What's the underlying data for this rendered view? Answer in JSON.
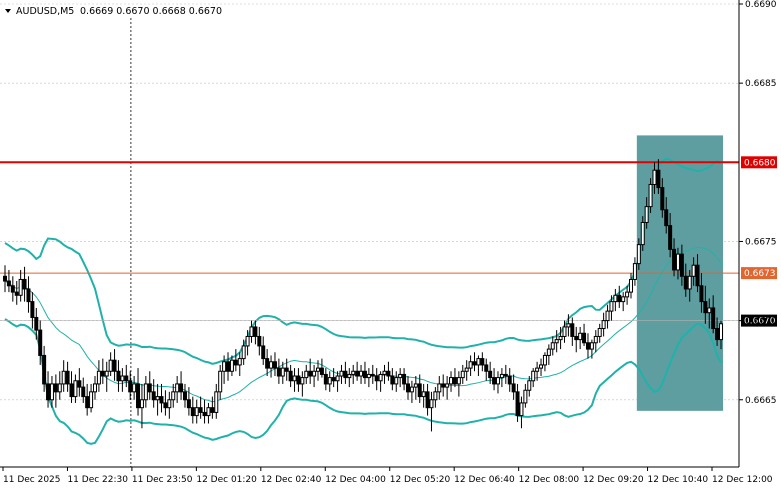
{
  "header": {
    "symbol": "AUDUSD,M5",
    "ohlc": "0.6669 0.6670 0.6668 0.6670"
  },
  "colors": {
    "candle": "#000000",
    "band": "#20b2aa",
    "resistance": "#e00000",
    "support": "#e0652f",
    "highlight": "#5f9ea0",
    "grid": "#c0c0c0",
    "current": "#000000"
  },
  "chart_data": {
    "type": "candlestick",
    "ylim": [
      0.66605,
      0.669
    ],
    "y_ticks": [
      "0.6665",
      "0.6670",
      "0.6675",
      "0.6685",
      "0.6690"
    ],
    "x_ticks": [
      "11 Dec 2025",
      "11 Dec 22:30",
      "11 Dec 23:50",
      "12 Dec 01:20",
      "12 Dec 02:40",
      "12 Dec 04:00",
      "12 Dec 05:20",
      "12 Dec 06:40",
      "12 Dec 08:00",
      "12 Dec 09:20",
      "12 Dec 10:40",
      "12 Dec 12:00"
    ],
    "levels": [
      {
        "label": "0.6680",
        "value": 0.668,
        "role": "resistance"
      },
      {
        "label": "0.6673",
        "value": 0.6673,
        "role": "support"
      },
      {
        "label": "0.6670",
        "value": 0.667,
        "role": "current"
      }
    ],
    "highlight_zone": {
      "from_index": 162,
      "to_index": 182,
      "y_low": 0.66643,
      "y_high": 0.66817
    },
    "candles": [
      [
        0.66728,
        0.66735,
        0.66718,
        0.66725
      ],
      [
        0.66725,
        0.66732,
        0.66718,
        0.66722
      ],
      [
        0.66722,
        0.66728,
        0.66712,
        0.66718
      ],
      [
        0.66718,
        0.66725,
        0.6671,
        0.66716
      ],
      [
        0.66716,
        0.66732,
        0.66712,
        0.66726
      ],
      [
        0.66726,
        0.66734,
        0.66712,
        0.6672
      ],
      [
        0.6672,
        0.66728,
        0.66705,
        0.66712
      ],
      [
        0.66712,
        0.66718,
        0.66695,
        0.66702
      ],
      [
        0.66702,
        0.66708,
        0.66688,
        0.66694
      ],
      [
        0.66694,
        0.667,
        0.66672,
        0.66678
      ],
      [
        0.66678,
        0.66684,
        0.66655,
        0.6666
      ],
      [
        0.6666,
        0.66668,
        0.66645,
        0.6665
      ],
      [
        0.6665,
        0.66665,
        0.66645,
        0.6666
      ],
      [
        0.6666,
        0.66666,
        0.66645,
        0.66655
      ],
      [
        0.66655,
        0.66668,
        0.6665,
        0.6666
      ],
      [
        0.6666,
        0.66675,
        0.66655,
        0.66668
      ],
      [
        0.66668,
        0.66674,
        0.66655,
        0.6666
      ],
      [
        0.6666,
        0.66668,
        0.66648,
        0.66652
      ],
      [
        0.66652,
        0.66666,
        0.66648,
        0.66662
      ],
      [
        0.66662,
        0.6667,
        0.66652,
        0.66658
      ],
      [
        0.66658,
        0.66664,
        0.66648,
        0.66652
      ],
      [
        0.66652,
        0.6666,
        0.6664,
        0.66645
      ],
      [
        0.66645,
        0.6666,
        0.66642,
        0.66655
      ],
      [
        0.66655,
        0.66665,
        0.6665,
        0.6666
      ],
      [
        0.6666,
        0.66675,
        0.66655,
        0.66668
      ],
      [
        0.66668,
        0.66676,
        0.6666,
        0.66665
      ],
      [
        0.66665,
        0.66674,
        0.66655,
        0.66668
      ],
      [
        0.66668,
        0.6668,
        0.66665,
        0.66675
      ],
      [
        0.66675,
        0.66682,
        0.66662,
        0.66668
      ],
      [
        0.66668,
        0.66675,
        0.66655,
        0.66662
      ],
      [
        0.66662,
        0.6667,
        0.66655,
        0.66665
      ],
      [
        0.66665,
        0.66672,
        0.66658,
        0.66662
      ],
      [
        0.66662,
        0.66668,
        0.6665,
        0.66655
      ],
      [
        0.66655,
        0.66665,
        0.6665,
        0.6666
      ],
      [
        0.6666,
        0.6667,
        0.6664,
        0.66645
      ],
      [
        0.66645,
        0.6666,
        0.66632,
        0.6665
      ],
      [
        0.6665,
        0.66665,
        0.66645,
        0.6666
      ],
      [
        0.6666,
        0.66668,
        0.6665,
        0.66655
      ],
      [
        0.66655,
        0.66663,
        0.66645,
        0.6665
      ],
      [
        0.6665,
        0.6666,
        0.6664,
        0.66652
      ],
      [
        0.66652,
        0.6666,
        0.66642,
        0.66648
      ],
      [
        0.66648,
        0.66656,
        0.6664,
        0.66645
      ],
      [
        0.66645,
        0.66655,
        0.66638,
        0.6665
      ],
      [
        0.6665,
        0.6666,
        0.66645,
        0.66655
      ],
      [
        0.66655,
        0.66665,
        0.66648,
        0.6666
      ],
      [
        0.6666,
        0.66668,
        0.6665,
        0.66655
      ],
      [
        0.66655,
        0.6666,
        0.66645,
        0.6665
      ],
      [
        0.6665,
        0.66658,
        0.6664,
        0.66645
      ],
      [
        0.66645,
        0.66652,
        0.66635,
        0.6664
      ],
      [
        0.6664,
        0.6665,
        0.66635,
        0.66645
      ],
      [
        0.66645,
        0.66652,
        0.66638,
        0.66642
      ],
      [
        0.66642,
        0.6665,
        0.66635,
        0.6664
      ],
      [
        0.6664,
        0.66648,
        0.66635,
        0.66645
      ],
      [
        0.66645,
        0.66652,
        0.66638,
        0.66642
      ],
      [
        0.66642,
        0.6666,
        0.66638,
        0.66655
      ],
      [
        0.66655,
        0.66672,
        0.6665,
        0.66668
      ],
      [
        0.66668,
        0.66678,
        0.6666,
        0.66674
      ],
      [
        0.66674,
        0.6668,
        0.66662,
        0.66668
      ],
      [
        0.66668,
        0.66678,
        0.66665,
        0.66675
      ],
      [
        0.66675,
        0.66682,
        0.66668,
        0.66672
      ],
      [
        0.66672,
        0.6668,
        0.66665,
        0.66676
      ],
      [
        0.66676,
        0.66688,
        0.66672,
        0.66684
      ],
      [
        0.66684,
        0.66694,
        0.66678,
        0.6669
      ],
      [
        0.6669,
        0.667,
        0.66686,
        0.66696
      ],
      [
        0.66696,
        0.667,
        0.66685,
        0.6669
      ],
      [
        0.6669,
        0.66696,
        0.66678,
        0.66684
      ],
      [
        0.66684,
        0.6669,
        0.66672,
        0.66676
      ],
      [
        0.66676,
        0.66682,
        0.66665,
        0.6667
      ],
      [
        0.6667,
        0.66678,
        0.66664,
        0.66674
      ],
      [
        0.66674,
        0.6668,
        0.66665,
        0.6667
      ],
      [
        0.6667,
        0.66676,
        0.6666,
        0.66665
      ],
      [
        0.66665,
        0.66674,
        0.6666,
        0.6667
      ],
      [
        0.6667,
        0.66676,
        0.66662,
        0.66668
      ],
      [
        0.66668,
        0.66672,
        0.66658,
        0.66662
      ],
      [
        0.66662,
        0.6667,
        0.66655,
        0.66665
      ],
      [
        0.66665,
        0.6667,
        0.66655,
        0.6666
      ],
      [
        0.6666,
        0.66668,
        0.66652,
        0.66664
      ],
      [
        0.66664,
        0.66672,
        0.6666,
        0.66668
      ],
      [
        0.66668,
        0.66676,
        0.6666,
        0.66665
      ],
      [
        0.66665,
        0.66672,
        0.66658,
        0.66668
      ],
      [
        0.66668,
        0.66675,
        0.66662,
        0.6667
      ],
      [
        0.6667,
        0.66676,
        0.66664,
        0.66666
      ],
      [
        0.66666,
        0.6667,
        0.66656,
        0.6666
      ],
      [
        0.6666,
        0.66668,
        0.66655,
        0.66664
      ],
      [
        0.66664,
        0.6667,
        0.66658,
        0.66662
      ],
      [
        0.66662,
        0.66668,
        0.66655,
        0.66665
      ],
      [
        0.66665,
        0.66672,
        0.6666,
        0.66668
      ],
      [
        0.66668,
        0.66674,
        0.6666,
        0.66664
      ],
      [
        0.66664,
        0.6667,
        0.66658,
        0.66666
      ],
      [
        0.66666,
        0.66672,
        0.6666,
        0.66668
      ],
      [
        0.66668,
        0.66674,
        0.66662,
        0.66665
      ],
      [
        0.66665,
        0.66672,
        0.6666,
        0.66668
      ],
      [
        0.66668,
        0.66674,
        0.6666,
        0.66664
      ],
      [
        0.66664,
        0.6667,
        0.66658,
        0.66666
      ],
      [
        0.66666,
        0.66672,
        0.6666,
        0.66665
      ],
      [
        0.66665,
        0.6667,
        0.66656,
        0.66662
      ],
      [
        0.66662,
        0.66668,
        0.66655,
        0.66666
      ],
      [
        0.66666,
        0.66672,
        0.6666,
        0.66668
      ],
      [
        0.66668,
        0.66674,
        0.66662,
        0.66665
      ],
      [
        0.66665,
        0.6667,
        0.66656,
        0.6666
      ],
      [
        0.6666,
        0.66668,
        0.66655,
        0.66664
      ],
      [
        0.66664,
        0.6667,
        0.66658,
        0.66666
      ],
      [
        0.66666,
        0.6667,
        0.66656,
        0.6666
      ],
      [
        0.6666,
        0.66665,
        0.6665,
        0.66655
      ],
      [
        0.66655,
        0.66662,
        0.66648,
        0.66658
      ],
      [
        0.66658,
        0.66665,
        0.6665,
        0.6666
      ],
      [
        0.6666,
        0.66666,
        0.66648,
        0.66652
      ],
      [
        0.66652,
        0.6666,
        0.66645,
        0.66655
      ],
      [
        0.66655,
        0.6666,
        0.6664,
        0.66645
      ],
      [
        0.66645,
        0.66655,
        0.6663,
        0.6665
      ],
      [
        0.6665,
        0.66658,
        0.66645,
        0.66655
      ],
      [
        0.66655,
        0.66665,
        0.6665,
        0.6666
      ],
      [
        0.6666,
        0.66666,
        0.66652,
        0.66658
      ],
      [
        0.66658,
        0.66665,
        0.6665,
        0.6666
      ],
      [
        0.6666,
        0.66668,
        0.66655,
        0.66664
      ],
      [
        0.66664,
        0.6667,
        0.66658,
        0.6666
      ],
      [
        0.6666,
        0.66668,
        0.66652,
        0.66664
      ],
      [
        0.66664,
        0.66672,
        0.6666,
        0.66668
      ],
      [
        0.66668,
        0.66675,
        0.66662,
        0.6667
      ],
      [
        0.6667,
        0.66678,
        0.66665,
        0.66674
      ],
      [
        0.66674,
        0.6668,
        0.66668,
        0.66672
      ],
      [
        0.66672,
        0.66678,
        0.66665,
        0.66676
      ],
      [
        0.66676,
        0.6668,
        0.66668,
        0.66672
      ],
      [
        0.66672,
        0.66676,
        0.66662,
        0.66668
      ],
      [
        0.66668,
        0.66674,
        0.6666,
        0.66664
      ],
      [
        0.66664,
        0.6667,
        0.66656,
        0.6666
      ],
      [
        0.6666,
        0.66668,
        0.66654,
        0.66664
      ],
      [
        0.66664,
        0.6667,
        0.66658,
        0.66666
      ],
      [
        0.66666,
        0.66672,
        0.6666,
        0.66665
      ],
      [
        0.66665,
        0.6667,
        0.66655,
        0.6666
      ],
      [
        0.6666,
        0.66666,
        0.6665,
        0.66655
      ],
      [
        0.66655,
        0.6666,
        0.66636,
        0.6664
      ],
      [
        0.6664,
        0.66652,
        0.66632,
        0.66648
      ],
      [
        0.66648,
        0.6666,
        0.66645,
        0.66656
      ],
      [
        0.66656,
        0.66665,
        0.66652,
        0.66662
      ],
      [
        0.66662,
        0.6667,
        0.66658,
        0.66668
      ],
      [
        0.66668,
        0.66674,
        0.66662,
        0.6667
      ],
      [
        0.6667,
        0.66676,
        0.66665,
        0.66672
      ],
      [
        0.66672,
        0.6668,
        0.66668,
        0.66678
      ],
      [
        0.66678,
        0.66685,
        0.66672,
        0.66682
      ],
      [
        0.66682,
        0.6669,
        0.66678,
        0.66686
      ],
      [
        0.66686,
        0.66694,
        0.6668,
        0.66688
      ],
      [
        0.66688,
        0.66696,
        0.66682,
        0.6669
      ],
      [
        0.6669,
        0.667,
        0.66686,
        0.66696
      ],
      [
        0.66696,
        0.66704,
        0.6669,
        0.66698
      ],
      [
        0.66698,
        0.66702,
        0.66684,
        0.6669
      ],
      [
        0.6669,
        0.66696,
        0.6668,
        0.66688
      ],
      [
        0.66688,
        0.66696,
        0.66682,
        0.66692
      ],
      [
        0.66692,
        0.66698,
        0.66684,
        0.66686
      ],
      [
        0.66686,
        0.66692,
        0.66676,
        0.66682
      ],
      [
        0.66682,
        0.66688,
        0.66676,
        0.66686
      ],
      [
        0.66686,
        0.66694,
        0.6668,
        0.6669
      ],
      [
        0.6669,
        0.66698,
        0.66686,
        0.66695
      ],
      [
        0.66695,
        0.66705,
        0.6669,
        0.667
      ],
      [
        0.667,
        0.6671,
        0.66695,
        0.66706
      ],
      [
        0.66706,
        0.66716,
        0.667,
        0.66712
      ],
      [
        0.66712,
        0.6672,
        0.66706,
        0.66716
      ],
      [
        0.66716,
        0.66722,
        0.66708,
        0.66712
      ],
      [
        0.66712,
        0.66718,
        0.66706,
        0.66715
      ],
      [
        0.66715,
        0.66722,
        0.6671,
        0.66718
      ],
      [
        0.66718,
        0.6673,
        0.66714,
        0.66726
      ],
      [
        0.66726,
        0.6674,
        0.66722,
        0.66736
      ],
      [
        0.66736,
        0.66752,
        0.66732,
        0.66748
      ],
      [
        0.66748,
        0.66766,
        0.66744,
        0.66762
      ],
      [
        0.66762,
        0.66778,
        0.66758,
        0.66772
      ],
      [
        0.66772,
        0.6679,
        0.66768,
        0.66786
      ],
      [
        0.66786,
        0.668,
        0.6678,
        0.66795
      ],
      [
        0.66795,
        0.66802,
        0.6678,
        0.66784
      ],
      [
        0.66784,
        0.6679,
        0.66765,
        0.6677
      ],
      [
        0.6677,
        0.66778,
        0.66755,
        0.6676
      ],
      [
        0.6676,
        0.66768,
        0.6674,
        0.66745
      ],
      [
        0.66745,
        0.66752,
        0.66728,
        0.66732
      ],
      [
        0.66732,
        0.66746,
        0.66726,
        0.66742
      ],
      [
        0.66742,
        0.66748,
        0.66722,
        0.66728
      ],
      [
        0.66728,
        0.66736,
        0.66715,
        0.6672
      ],
      [
        0.6672,
        0.66732,
        0.66712,
        0.66728
      ],
      [
        0.66728,
        0.6674,
        0.66722,
        0.66735
      ],
      [
        0.66735,
        0.66742,
        0.66718,
        0.66722
      ],
      [
        0.66722,
        0.6673,
        0.66705,
        0.66712
      ],
      [
        0.66712,
        0.66722,
        0.66698,
        0.66705
      ],
      [
        0.66705,
        0.66714,
        0.66695,
        0.66708
      ],
      [
        0.66708,
        0.66716,
        0.66692,
        0.66695
      ],
      [
        0.66695,
        0.66702,
        0.66684,
        0.66688
      ],
      [
        0.66688,
        0.667,
        0.66682,
        0.66698
      ]
    ]
  }
}
